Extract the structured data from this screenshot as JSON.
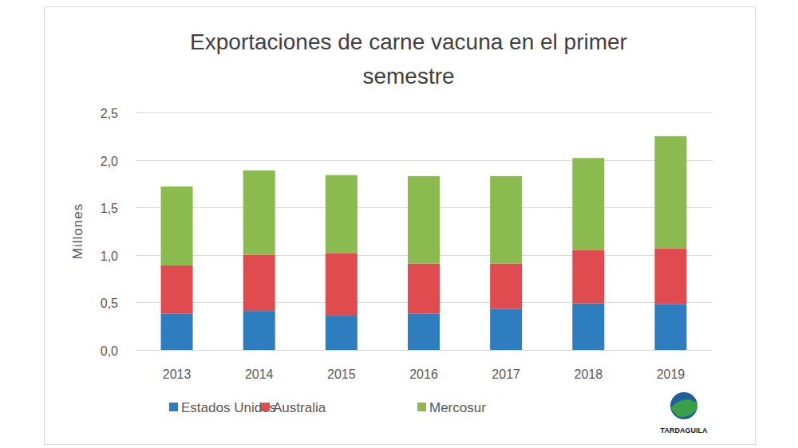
{
  "chart_data": {
    "type": "bar",
    "stacked": true,
    "title": "Exportaciones de carne vacuna en el primer semestre",
    "y_label": "Millones",
    "categories": [
      "2013",
      "2014",
      "2015",
      "2016",
      "2017",
      "2018",
      "2019"
    ],
    "series": [
      {
        "name": "Estados Unidos",
        "color": "#2e7ebf",
        "values": [
          0.38,
          0.41,
          0.36,
          0.38,
          0.43,
          0.49,
          0.48
        ]
      },
      {
        "name": "Australia",
        "color": "#e04b4f",
        "values": [
          0.51,
          0.59,
          0.66,
          0.53,
          0.48,
          0.56,
          0.59
        ]
      },
      {
        "name": "Mercosur",
        "color": "#8bbb4f",
        "values": [
          0.83,
          0.89,
          0.82,
          0.92,
          0.92,
          0.97,
          1.18
        ]
      }
    ],
    "ylim": [
      0,
      2.5
    ],
    "yticks": [
      {
        "value": 0,
        "label": "0,0"
      },
      {
        "value": 0.5,
        "label": "0,5"
      },
      {
        "value": 1,
        "label": "1,0"
      },
      {
        "value": 1.5,
        "label": "1,5"
      },
      {
        "value": 2,
        "label": "2,0"
      },
      {
        "value": 2.5,
        "label": "2,5"
      }
    ],
    "grid": true,
    "legend": "bottom",
    "annotations": [
      "TARDAGUILA"
    ]
  }
}
